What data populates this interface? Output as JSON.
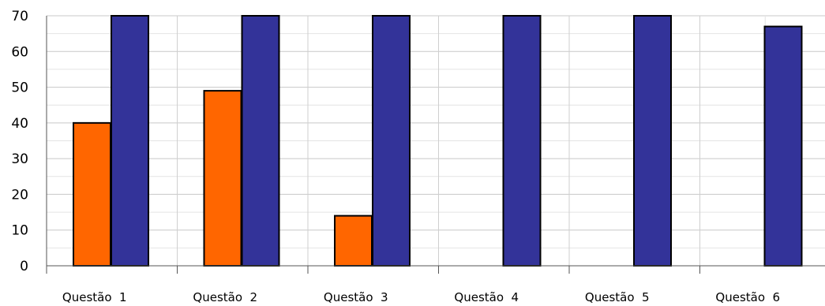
{
  "chart_data": {
    "type": "bar",
    "title": "",
    "xlabel": "",
    "ylabel": "",
    "categories": [
      "Questão  1",
      "Questão  2",
      "Questão  3",
      "Questão  4",
      "Questão  5",
      "Questão  6"
    ],
    "series": [
      {
        "color": "#FF6600",
        "values": [
          40,
          49,
          14,
          0,
          0,
          0
        ]
      },
      {
        "color": "#333399",
        "values": [
          70,
          70,
          70,
          70,
          70,
          67
        ]
      }
    ],
    "ylim": [
      0,
      70
    ],
    "yticks": [
      "0",
      "10",
      "20",
      "30",
      "40",
      "50",
      "60",
      "70"
    ],
    "grid": true,
    "legend": "none"
  }
}
